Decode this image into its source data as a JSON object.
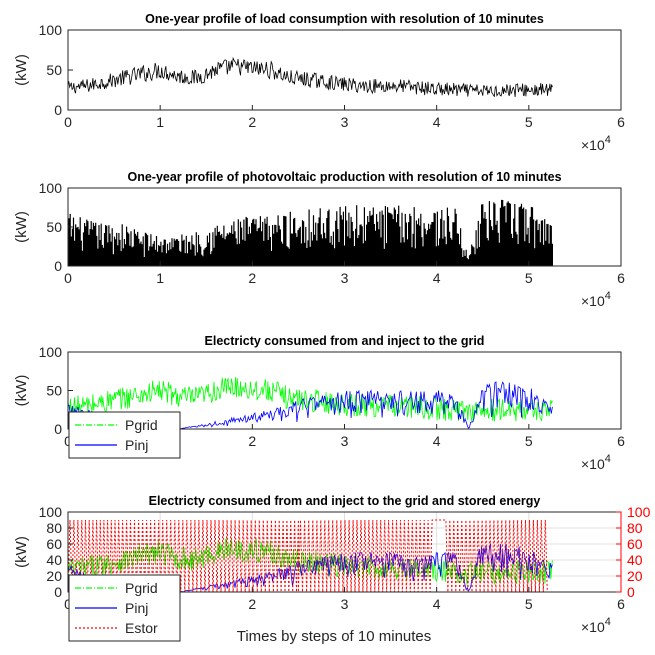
{
  "figure": {
    "xlabel": "Times by steps of 10 minutes"
  },
  "colors": {
    "load": "#000000",
    "pv": "#000000",
    "pgrid": "#00ff00",
    "pinj": "#0000ff",
    "estor": "#ff0000",
    "axis": "#262626",
    "right_axis": "#ff0000"
  },
  "chart_data": [
    {
      "type": "line",
      "title": "One-year profile of load consumption with resolution of 10 minutes",
      "ylabel": "(kW)",
      "xlabel": "",
      "xlim": [
        0,
        60000
      ],
      "ylim": [
        0,
        100
      ],
      "x_ticks": [
        0,
        1,
        2,
        3,
        4,
        5,
        6
      ],
      "y_ticks": [
        0,
        50,
        100
      ],
      "x_exponent": "×10",
      "x_exponent_power": "4",
      "grid": false,
      "series": [
        {
          "name": "",
          "color": "#000000",
          "x": [
            0,
            2000,
            4000,
            6000,
            8000,
            10000,
            12000,
            14000,
            16000,
            18000,
            20000,
            22000,
            24000,
            26000,
            28000,
            30000,
            32000,
            34000,
            36000,
            38000,
            40000,
            42000,
            44000,
            46000,
            48000,
            50000,
            52560
          ],
          "y": [
            28,
            30,
            35,
            40,
            45,
            50,
            42,
            40,
            50,
            55,
            52,
            50,
            40,
            38,
            35,
            32,
            30,
            30,
            30,
            28,
            26,
            25,
            24,
            24,
            25,
            25,
            25
          ],
          "spread": [
            8,
            9,
            9,
            10,
            11,
            11,
            10,
            10,
            11,
            11,
            11,
            11,
            10,
            10,
            9,
            9,
            9,
            9,
            9,
            9,
            9,
            9,
            8,
            8,
            9,
            9,
            9
          ]
        }
      ]
    },
    {
      "type": "bar",
      "title": "One-year profile of photovoltaic production with resolution of 10 minutes",
      "ylabel": "(kW)",
      "xlabel": "",
      "xlim": [
        0,
        60000
      ],
      "ylim": [
        0,
        100
      ],
      "x_ticks": [
        0,
        1,
        2,
        3,
        4,
        5,
        6
      ],
      "y_ticks": [
        0,
        50,
        100
      ],
      "x_exponent": "×10",
      "x_exponent_power": "4",
      "grid": false,
      "series": [
        {
          "name": "",
          "color": "#000000",
          "x": [
            0,
            2000,
            4000,
            6000,
            8000,
            10000,
            12000,
            14000,
            16000,
            18000,
            20000,
            22000,
            24000,
            26000,
            28000,
            30000,
            32000,
            34000,
            36000,
            38000,
            40000,
            42000,
            43500,
            44500,
            46000,
            48000,
            50000,
            52560
          ],
          "y": [
            70,
            60,
            55,
            55,
            45,
            40,
            40,
            45,
            55,
            60,
            65,
            65,
            70,
            75,
            75,
            78,
            78,
            78,
            78,
            78,
            75,
            75,
            10,
            80,
            85,
            85,
            80,
            60
          ]
        }
      ]
    },
    {
      "type": "line",
      "title": "Electricty consumed from and inject to the grid",
      "ylabel": "(kW)",
      "xlabel": "",
      "xlim": [
        0,
        60000
      ],
      "ylim": [
        0,
        100
      ],
      "x_ticks": [
        0,
        1,
        2,
        3,
        4,
        5,
        6
      ],
      "y_ticks": [
        0,
        50,
        100
      ],
      "x_exponent": "×10",
      "x_exponent_power": "4",
      "grid": false,
      "legend": "bottom-left",
      "series": [
        {
          "name": "Pgrid",
          "color": "#00ff00",
          "style": "dashdot",
          "x": [
            0,
            2000,
            4000,
            6000,
            8000,
            10000,
            12000,
            14000,
            16000,
            18000,
            20000,
            22000,
            24000,
            26000,
            28000,
            30000,
            32000,
            34000,
            36000,
            38000,
            40000,
            42000,
            44000,
            46000,
            48000,
            50000,
            52560
          ],
          "y": [
            28,
            30,
            35,
            40,
            45,
            50,
            42,
            40,
            50,
            55,
            52,
            50,
            40,
            38,
            35,
            32,
            30,
            30,
            30,
            28,
            26,
            25,
            24,
            24,
            25,
            25,
            25
          ]
        },
        {
          "name": "Pinj",
          "color": "#0000ff",
          "style": "solid",
          "x": [
            0,
            2000,
            4000,
            6000,
            8000,
            10000,
            12000,
            14000,
            16000,
            18000,
            20000,
            22000,
            24000,
            26000,
            28000,
            30000,
            32000,
            34000,
            36000,
            38000,
            40000,
            42000,
            43500,
            44500,
            46000,
            48000,
            50000,
            52560
          ],
          "y": [
            35,
            25,
            20,
            15,
            5,
            0,
            0,
            5,
            10,
            15,
            20,
            25,
            35,
            40,
            45,
            50,
            50,
            50,
            50,
            50,
            50,
            50,
            0,
            55,
            62,
            60,
            55,
            35
          ]
        }
      ]
    },
    {
      "type": "line",
      "title": "Electricty consumed from and inject to the grid and stored energy",
      "ylabel": "(kW)",
      "xlabel": "Times by steps of 10 minutes",
      "xlim": [
        0,
        60000
      ],
      "ylim": [
        0,
        100
      ],
      "y2lim": [
        0,
        100
      ],
      "x_ticks": [
        0,
        1,
        2,
        3,
        4,
        5,
        6
      ],
      "y_ticks": [
        0,
        20,
        40,
        60,
        80,
        100
      ],
      "y2_ticks": [
        0,
        20,
        40,
        60,
        80,
        100
      ],
      "x_exponent": "×10",
      "x_exponent_power": "4",
      "grid": true,
      "legend": "bottom-left",
      "series": [
        {
          "name": "Pgrid",
          "color": "#00ff00",
          "style": "dashdot",
          "x": [
            0,
            2000,
            4000,
            6000,
            8000,
            10000,
            12000,
            14000,
            16000,
            18000,
            20000,
            22000,
            24000,
            26000,
            28000,
            30000,
            32000,
            34000,
            36000,
            38000,
            40000,
            42000,
            44000,
            46000,
            48000,
            50000,
            52560
          ],
          "y": [
            28,
            30,
            35,
            40,
            45,
            50,
            42,
            40,
            50,
            55,
            52,
            50,
            40,
            38,
            35,
            32,
            30,
            30,
            30,
            28,
            26,
            25,
            24,
            24,
            25,
            25,
            25
          ]
        },
        {
          "name": "Pinj",
          "color": "#0000ff",
          "style": "solid",
          "x": [
            0,
            2000,
            4000,
            6000,
            8000,
            10000,
            12000,
            14000,
            16000,
            18000,
            20000,
            22000,
            24000,
            26000,
            28000,
            30000,
            32000,
            34000,
            36000,
            38000,
            40000,
            42000,
            43500,
            44500,
            46000,
            48000,
            50000,
            52560
          ],
          "y": [
            35,
            25,
            20,
            15,
            5,
            0,
            0,
            5,
            10,
            15,
            20,
            25,
            35,
            40,
            45,
            50,
            50,
            50,
            50,
            50,
            50,
            50,
            0,
            55,
            62,
            60,
            55,
            35
          ]
        },
        {
          "name": "Estor",
          "color": "#ff0000",
          "style": "dotted",
          "axis": "right",
          "x": [
            0,
            1500,
            2500,
            3500,
            4500,
            5500,
            7000,
            22500,
            25000,
            27000,
            28500,
            30500,
            32000,
            33500,
            35000,
            36500,
            38000,
            39500,
            41000,
            42500,
            44500,
            46000,
            47500,
            49000,
            50500,
            52000
          ],
          "y": [
            0,
            90,
            0,
            90,
            0,
            90,
            0,
            90,
            0,
            90,
            0,
            90,
            0,
            90,
            0,
            90,
            0,
            90,
            90,
            0,
            90,
            0,
            90,
            0,
            90,
            0
          ]
        }
      ]
    }
  ]
}
